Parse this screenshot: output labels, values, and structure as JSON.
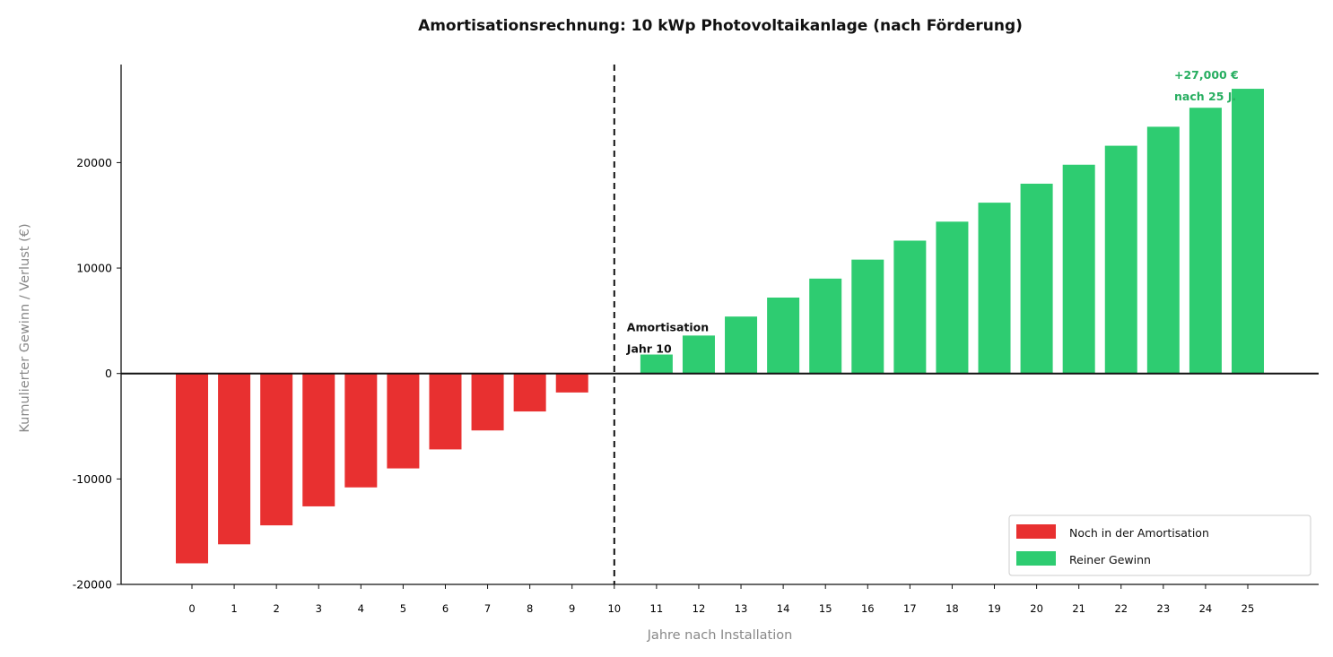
{
  "chart_data": {
    "type": "bar",
    "title": "Amortisationsrechnung: 10 kWp Photovoltaikanlage (nach Förderung)",
    "xlabel": "Jahre nach Installation",
    "ylabel": "Kumulierter Gewinn / Verlust (€)",
    "categories": [
      "0",
      "1",
      "2",
      "3",
      "4",
      "5",
      "6",
      "7",
      "8",
      "9",
      "10",
      "11",
      "12",
      "13",
      "14",
      "15",
      "16",
      "17",
      "18",
      "19",
      "20",
      "21",
      "22",
      "23",
      "24",
      "25"
    ],
    "values": [
      -18000,
      -16200,
      -14400,
      -12600,
      -10800,
      -9000,
      -7200,
      -5400,
      -3600,
      -1800,
      0,
      1800,
      3600,
      5400,
      7200,
      9000,
      10800,
      12600,
      14400,
      16200,
      18000,
      19800,
      21600,
      23400,
      25200,
      27000
    ],
    "ylim": [
      -20000,
      29300
    ],
    "yticks": [
      -20000,
      -10000,
      0,
      10000,
      20000
    ],
    "ytick_labels": [
      "-20000",
      "-10000",
      "0",
      "10000",
      "20000"
    ],
    "grid": false,
    "series": [
      {
        "name": "Noch in der Amortisation",
        "color": "#e83030"
      },
      {
        "name": "Reiner Gewinn",
        "color": "#2ecc71"
      }
    ],
    "breakeven_year": 10,
    "annotations": {
      "breakeven_line1": "Amortisation",
      "breakeven_line2": "Jahr 10",
      "final_line1": "+27,000 €",
      "final_line2": "nach 25 J.",
      "final_color": "#27ae60"
    },
    "legend_position": "lower-right"
  }
}
